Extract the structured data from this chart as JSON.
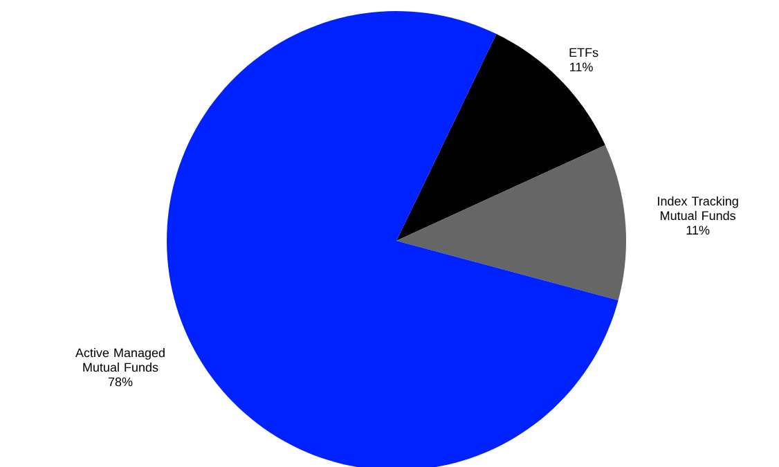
{
  "chart_data": {
    "type": "pie",
    "categories": [
      "ETFs",
      "Index Tracking Mutual Funds",
      "Active Managed Mutual Funds"
    ],
    "values": [
      11,
      11,
      78
    ],
    "colors": [
      "#000000",
      "#666666",
      "#0022ff"
    ],
    "value_labels": [
      "11%",
      "11%",
      "78%"
    ]
  }
}
